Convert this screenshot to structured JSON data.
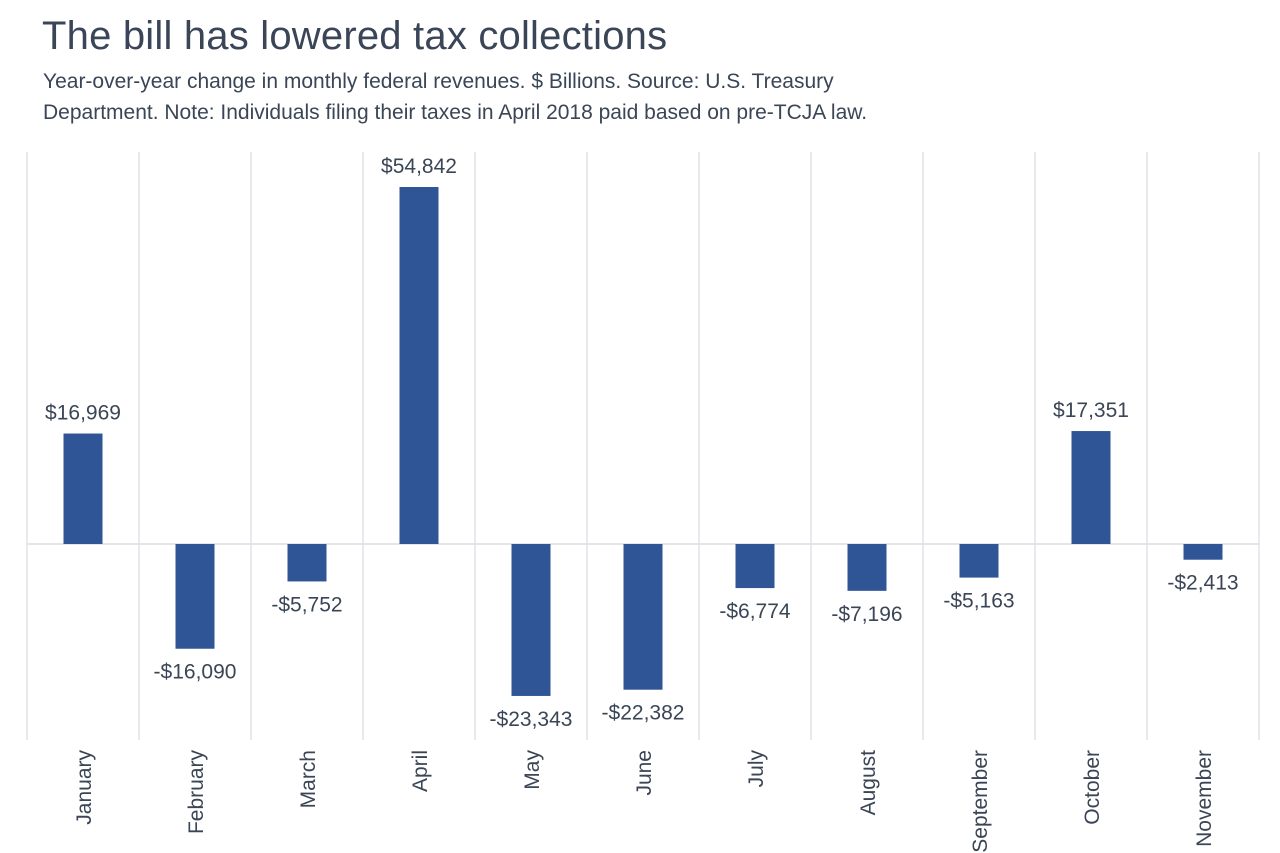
{
  "title": "The bill has lowered tax collections",
  "subtitle": {
    "line1": "Year-over-year change in monthly federal revenues. $ Billions. Source: U.S. Treasury",
    "line2": "Department. Note: Individuals filing their taxes in April 2018 paid based on pre-TCJA law."
  },
  "colors": {
    "bar": "#2f5597",
    "grid": "#d9dde3",
    "text": "#3a4556"
  },
  "chart_data": {
    "type": "bar",
    "categories": [
      "January",
      "February",
      "March",
      "April",
      "May",
      "June",
      "July",
      "August",
      "September",
      "October",
      "November"
    ],
    "values": [
      16969,
      -16090,
      -5752,
      54842,
      -23343,
      -22382,
      -6774,
      -7196,
      -5163,
      17351,
      -2413
    ],
    "value_labels": [
      "$16,969",
      "-$16,090",
      "-$5,752",
      "$54,842",
      "-$23,343",
      "-$22,382",
      "-$6,774",
      "-$7,196",
      "-$5,163",
      "$17,351",
      "-$2,413"
    ],
    "ylim": [
      -30000,
      60000
    ],
    "grid": "vertical",
    "legend": "none"
  }
}
